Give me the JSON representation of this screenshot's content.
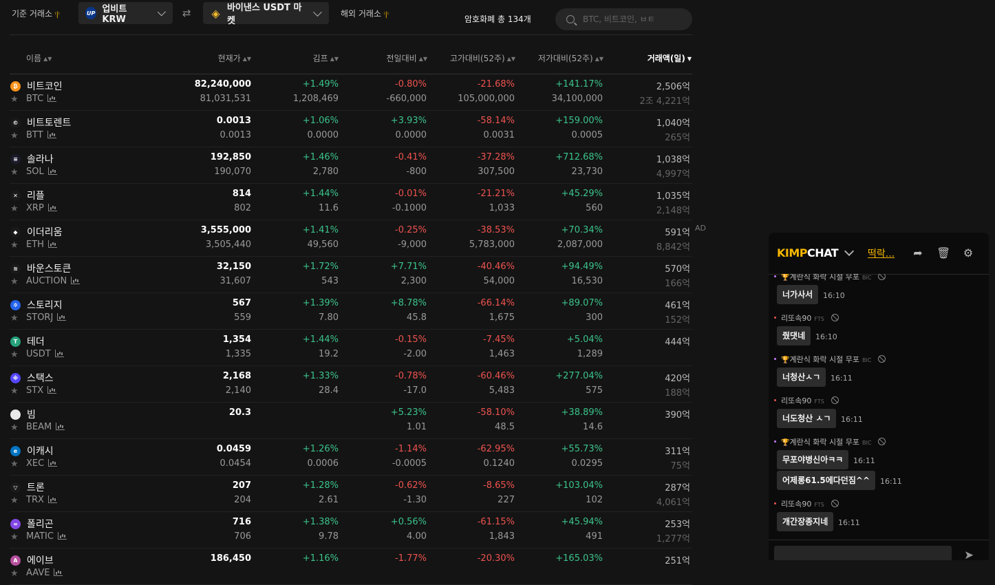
{
  "topbar": {
    "base_label": "기준 거래소",
    "base_exchange": "업비트 KRW",
    "base_logo": "UP",
    "compare_exchange": "바이낸스 USDT 마켓",
    "overseas_label": "해외 거래소",
    "total_label": "암호화폐 총 134개",
    "search_placeholder": "BTC, 비트코인, ㅂㅌ"
  },
  "table": {
    "headers": [
      "이름",
      "현재가",
      "김프",
      "전일대비",
      "고가대비(52주)",
      "저가대비(52주)",
      "거래액(일)"
    ],
    "active_sort": "거래액(일)",
    "rows": [
      {
        "name": "비트코인",
        "symbol": "BTC",
        "icon_color": "#f7931a",
        "icon_text": "₿",
        "price": "82,240,000",
        "price2": "81,031,531",
        "kimp": "+1.49%",
        "kimp2": "1,208,469",
        "change": "-0.80%",
        "change2": "-660,000",
        "high": "-21.68%",
        "high2": "105,000,000",
        "low": "+141.17%",
        "low2": "34,100,000",
        "vol": "2,506",
        "vol2": "2조 4,221"
      },
      {
        "name": "비트토렌트",
        "symbol": "BTT",
        "icon_color": "#1a1a1a",
        "icon_text": "©",
        "price": "0.0013",
        "price2": "0.0013",
        "kimp": "+1.06%",
        "kimp2": "0.0000",
        "change": "+3.93%",
        "change2": "0.0000",
        "high": "-58.14%",
        "high2": "0.0031",
        "low": "+159.00%",
        "low2": "0.0005",
        "vol": "1,040",
        "vol2": "265"
      },
      {
        "name": "솔라나",
        "symbol": "SOL",
        "icon_color": "#1b1b2b",
        "icon_text": "≡",
        "price": "192,850",
        "price2": "190,070",
        "kimp": "+1.46%",
        "kimp2": "2,780",
        "change": "-0.41%",
        "change2": "-800",
        "high": "-37.28%",
        "high2": "307,500",
        "low": "+712.68%",
        "low2": "23,730",
        "vol": "1,038",
        "vol2": "4,997"
      },
      {
        "name": "리플",
        "symbol": "XRP",
        "icon_color": "#1a1a1a",
        "icon_text": "✕",
        "price": "814",
        "price2": "802",
        "kimp": "+1.44%",
        "kimp2": "11.6",
        "change": "-0.01%",
        "change2": "-0.1000",
        "high": "-21.21%",
        "high2": "1,033",
        "low": "+45.29%",
        "low2": "560",
        "vol": "1,035",
        "vol2": "2,148"
      },
      {
        "name": "이더리움",
        "symbol": "ETH",
        "icon_color": "#1a1a1a",
        "icon_text": "◆",
        "price": "3,555,000",
        "price2": "3,505,440",
        "kimp": "+1.41%",
        "kimp2": "49,560",
        "change": "-0.25%",
        "change2": "-9,000",
        "high": "-38.53%",
        "high2": "5,783,000",
        "low": "+70.34%",
        "low2": "2,087,000",
        "vol": "591",
        "vol2": "8,842"
      },
      {
        "name": "바운스토큰",
        "symbol": "AUCTION",
        "icon_color": "#1a1a1a",
        "icon_text": "≋",
        "price": "32,150",
        "price2": "31,607",
        "kimp": "+1.72%",
        "kimp2": "543",
        "change": "+7.71%",
        "change2": "2,300",
        "high": "-40.46%",
        "high2": "54,000",
        "low": "+94.49%",
        "low2": "16,530",
        "vol": "570",
        "vol2": "166"
      },
      {
        "name": "스토리지",
        "symbol": "STORJ",
        "icon_color": "#2563eb",
        "icon_text": "✲",
        "price": "567",
        "price2": "559",
        "kimp": "+1.39%",
        "kimp2": "7.80",
        "change": "+8.78%",
        "change2": "45.8",
        "high": "-66.14%",
        "high2": "1,675",
        "low": "+89.07%",
        "low2": "300",
        "vol": "461",
        "vol2": "152"
      },
      {
        "name": "테더",
        "symbol": "USDT",
        "icon_color": "#26a17b",
        "icon_text": "T",
        "price": "1,354",
        "price2": "1,335",
        "kimp": "+1.44%",
        "kimp2": "19.2",
        "change": "-0.15%",
        "change2": "-2.00",
        "high": "-7.45%",
        "high2": "1,463",
        "low": "+5.04%",
        "low2": "1,289",
        "vol": "444",
        "vol2": ""
      },
      {
        "name": "스택스",
        "symbol": "STX",
        "icon_color": "#5546ff",
        "icon_text": "※",
        "price": "2,168",
        "price2": "2,140",
        "kimp": "+1.33%",
        "kimp2": "28.4",
        "change": "-0.78%",
        "change2": "-17.0",
        "high": "-60.46%",
        "high2": "5,483",
        "low": "+277.04%",
        "low2": "575",
        "vol": "420",
        "vol2": "188"
      },
      {
        "name": "빔",
        "symbol": "BEAM",
        "icon_color": "#e8e8e8",
        "icon_text": "",
        "price": "20.3",
        "price2": "",
        "kimp": "",
        "kimp2": "",
        "change": "+5.23%",
        "change2": "1.01",
        "high": "-58.10%",
        "high2": "48.5",
        "low": "+38.89%",
        "low2": "14.6",
        "vol": "390",
        "vol2": ""
      },
      {
        "name": "이캐시",
        "symbol": "XEC",
        "icon_color": "#0074c2",
        "icon_text": "e",
        "price": "0.0459",
        "price2": "0.0454",
        "kimp": "+1.26%",
        "kimp2": "0.0006",
        "change": "-1.14%",
        "change2": "-0.0005",
        "high": "-62.95%",
        "high2": "0.1240",
        "low": "+55.73%",
        "low2": "0.0295",
        "vol": "311",
        "vol2": "75"
      },
      {
        "name": "트론",
        "symbol": "TRX",
        "icon_color": "#1a1a1a",
        "icon_text": "▽",
        "price": "207",
        "price2": "204",
        "kimp": "+1.28%",
        "kimp2": "2.61",
        "change": "-0.62%",
        "change2": "-1.30",
        "high": "-8.65%",
        "high2": "227",
        "low": "+103.04%",
        "low2": "102",
        "vol": "287",
        "vol2": "4,061"
      },
      {
        "name": "폴리곤",
        "symbol": "MATIC",
        "icon_color": "#8247e5",
        "icon_text": "∞",
        "price": "716",
        "price2": "706",
        "kimp": "+1.38%",
        "kimp2": "9.78",
        "change": "+0.56%",
        "change2": "4.00",
        "high": "-61.15%",
        "high2": "1,843",
        "low": "+45.94%",
        "low2": "491",
        "vol": "253",
        "vol2": "1,277"
      },
      {
        "name": "에이브",
        "symbol": "AAVE",
        "icon_color": "#b6509e",
        "icon_text": "A",
        "price": "186,450",
        "price2": "",
        "kimp": "+1.16%",
        "kimp2": "",
        "change": "-1.77%",
        "change2": "",
        "high": "-20.30%",
        "high2": "",
        "low": "+165.03%",
        "low2": "",
        "vol": "251",
        "vol2": ""
      }
    ],
    "unit": "억",
    "ad_label": "AD"
  },
  "chat": {
    "logo_a": "KIMP",
    "logo_b": "CHAT",
    "room": "떡락...",
    "messages": [
      {
        "user": "계란식 화락 시절 무포",
        "tag": "BIC",
        "trophy": true,
        "dot": "#c77dff",
        "text": "너가사서",
        "time": "16:10"
      },
      {
        "user": "리또속90",
        "tag": "FTS",
        "trophy": false,
        "dot": "#ef5350",
        "text": "줬댓네",
        "time": "16:10"
      },
      {
        "user": "계란식 화락 시절 무포",
        "tag": "BIC",
        "trophy": true,
        "dot": "#c77dff",
        "text": "너청산ㅅㄱ",
        "time": "16:11"
      },
      {
        "user": "리또속90",
        "tag": "FTS",
        "trophy": false,
        "dot": "#ef5350",
        "text": "너도청산 ㅅㄱ",
        "time": "16:11"
      },
      {
        "user": "계란식 화락 시절 무포",
        "tag": "BIC",
        "trophy": true,
        "dot": "#c77dff",
        "text": "무포야병신아ㅋㅋ",
        "time": "16:11",
        "text2": "어제롱61.5에다던짐^^",
        "time2": "16:11"
      },
      {
        "user": "리또속90",
        "tag": "FTS",
        "trophy": false,
        "dot": "#ef5350",
        "text": "개간장종지네",
        "time": "16:11"
      }
    ]
  }
}
